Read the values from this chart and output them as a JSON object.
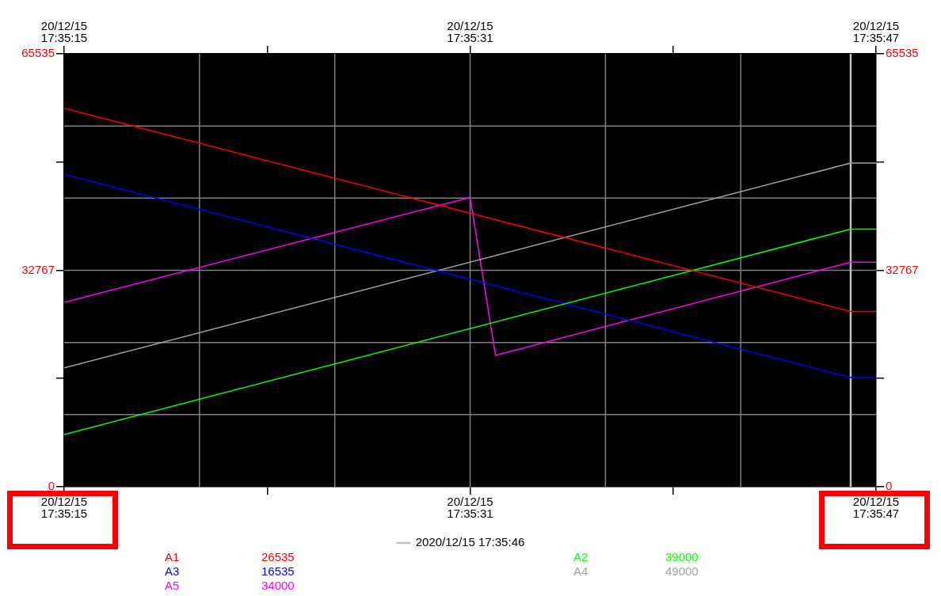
{
  "chart_data": {
    "type": "line",
    "x": [
      "2020-12-15T17:35:15",
      "2020-12-15T17:35:46",
      "2020-12-15T17:35:47"
    ],
    "series": [
      {
        "name": "A1",
        "color": "#ff0000",
        "values": [
          57300,
          26535,
          26535
        ]
      },
      {
        "name": "A2",
        "color": "#00ff00",
        "values": [
          7900,
          39000,
          39000
        ]
      },
      {
        "name": "A3",
        "color": "#0000ff",
        "values": [
          47300,
          16535,
          16535
        ]
      },
      {
        "name": "A4",
        "color": "#a0a0a0",
        "values": [
          18000,
          49000,
          49000
        ]
      },
      {
        "name": "A5",
        "color": "#ff00ff",
        "x": [
          "2020-12-15T17:35:15",
          "2020-12-15T17:35:31",
          "2020-12-15T17:35:32",
          "2020-12-15T17:35:46",
          "2020-12-15T17:35:47"
        ],
        "values": [
          27900,
          43800,
          19900,
          34000,
          34000
        ]
      }
    ],
    "annotations": [
      "26535",
      "39000",
      "16535",
      "49000",
      "34000"
    ],
    "xlim": [
      "2020-12-15T17:35:15",
      "2020-12-15T17:35:47"
    ],
    "xticks": [
      {
        "value": "2020-12-15T17:35:15",
        "label": "20/12/15\n17:35:15"
      },
      {
        "value": "2020-12-15T17:35:23",
        "label": null
      },
      {
        "value": "2020-12-15T17:35:31",
        "label": "20/12/15\n17:35:31"
      },
      {
        "value": "2020-12-15T17:35:39",
        "label": null
      },
      {
        "value": "2020-12-15T17:35:47",
        "label": "20/12/15\n17:35:47"
      }
    ],
    "x2lim": [
      "2020-12-15T17:35:15",
      "2020-12-15T17:35:47"
    ],
    "x2ticks": [
      {
        "value": "2020-12-15T17:35:15",
        "label": "20/12/15\n17:35:15"
      },
      {
        "value": "2020-12-15T17:35:23",
        "label": null
      },
      {
        "value": "2020-12-15T17:35:31",
        "label": "20/12/15\n17:35:31"
      },
      {
        "value": "2020-12-15T17:35:39",
        "label": null
      },
      {
        "value": "2020-12-15T17:35:47",
        "label": "20/12/15\n17:35:47"
      }
    ],
    "ylim": [
      0,
      65535
    ],
    "yticks": [
      0,
      {
        "value": 16384,
        "label": null
      },
      32767,
      {
        "value": 49151,
        "label": null
      },
      65535
    ],
    "y2lim": [
      0,
      65535
    ],
    "y2ticks": [
      0,
      {
        "value": 16384,
        "label": null
      },
      32767,
      {
        "value": 49151,
        "label": null
      },
      65535
    ],
    "ref_lines": [
      {
        "axis": "x",
        "value": "2020-12-15T17:35:46",
        "label": "2020/12/15 17:35:46",
        "color": "#c0c0c0"
      }
    ],
    "grid": true,
    "legend": "bottom",
    "marker": "none",
    "line_style": "solid"
  }
}
